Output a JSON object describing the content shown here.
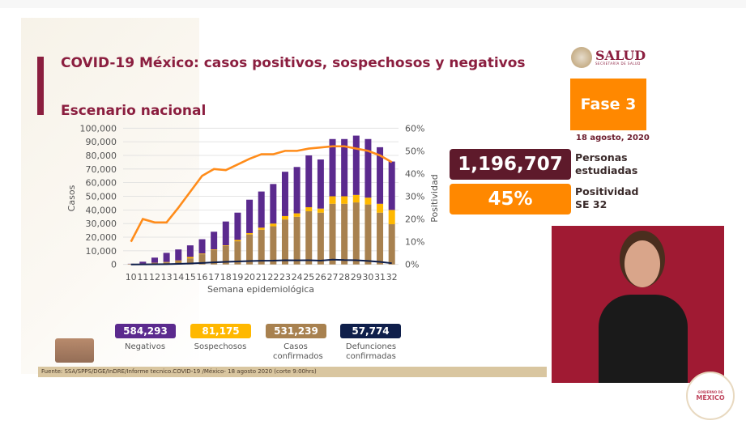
{
  "slide": {
    "title": "COVID-19 México: casos positivos, sospechosos y negativos",
    "subtitle": "Escenario nacional",
    "logo_text": "SALUD",
    "logo_subtext": "SECRETARÍA DE SALUD",
    "phase": "Fase 3",
    "date": "18 agosto, 2020",
    "studied_value": "1,196,707",
    "studied_label_1": "Personas",
    "studied_label_2": "estudiadas",
    "positivity_value": "45%",
    "positivity_label_1": "Positividad",
    "positivity_label_2": "SE 32",
    "source": "Fuente: SSA/SPPS/DGE/InDRE/Informe tecnico.COVID-19 /México- 18 agosto 2020 (corte 9:00hrs)",
    "gob_logo_text": "MÉXICO",
    "gob_logo_subtext": "GOBIERNO DE"
  },
  "totals": [
    {
      "value": "584,293",
      "label": "Negativos",
      "color": "#5b2a8e"
    },
    {
      "value": "81,175",
      "label": "Sospechosos",
      "color": "#ffb800"
    },
    {
      "value": "531,239",
      "label": "Casos confirmados",
      "color": "#a8814f"
    },
    {
      "value": "57,774",
      "label": "Defunciones confirmadas",
      "color": "#0f1f4b"
    }
  ],
  "colors": {
    "brand": "#8b1e3f",
    "orange": "#ff8800",
    "studied_box": "#5e1a2b"
  },
  "chart_data": {
    "type": "bar",
    "stacked": true,
    "xlabel": "Semana epidemiológica",
    "ylabel": "Casos",
    "y2label": "Positividad",
    "ylim": [
      0,
      100000
    ],
    "y2lim": [
      0,
      60
    ],
    "yticks": [
      "0",
      "10,000",
      "20,000",
      "30,000",
      "40,000",
      "50,000",
      "60,000",
      "70,000",
      "80,000",
      "90,000",
      "100,000"
    ],
    "y2ticks": [
      "0%",
      "10%",
      "20%",
      "30%",
      "40%",
      "50%",
      "60%"
    ],
    "grid": true,
    "categories": [
      "10",
      "11",
      "12",
      "13",
      "14",
      "15",
      "16",
      "17",
      "18",
      "19",
      "20",
      "21",
      "22",
      "23",
      "24",
      "25",
      "26",
      "27",
      "28",
      "29",
      "30",
      "31",
      "32"
    ],
    "series": [
      {
        "type": "bar",
        "color": "#a8814f",
        "values": [
          300,
          500,
          1000,
          1500,
          2500,
          4500,
          7500,
          10500,
          13500,
          17000,
          22000,
          25500,
          28000,
          33000,
          35000,
          39000,
          38000,
          44500,
          44500,
          45500,
          44000,
          38000,
          29500
        ]
      },
      {
        "type": "bar",
        "color": "#ffb800",
        "values": [
          50,
          100,
          200,
          300,
          400,
          1000,
          500,
          500,
          500,
          1000,
          1000,
          1500,
          2000,
          2500,
          2500,
          3000,
          3000,
          5500,
          5500,
          5500,
          5000,
          6500,
          10500
        ]
      },
      {
        "type": "bar",
        "color": "#5b2a8e",
        "values": [
          150,
          1400,
          3800,
          6700,
          8100,
          8500,
          10500,
          13000,
          17500,
          20000,
          24500,
          26500,
          29000,
          32500,
          34000,
          38000,
          36000,
          42000,
          42000,
          43500,
          43000,
          41500,
          35500
        ]
      },
      {
        "type": "line",
        "color": "#0f1f4b",
        "values": [
          0,
          50,
          100,
          200,
          400,
          700,
          1100,
          1500,
          1900,
          2200,
          2500,
          2700,
          2800,
          3100,
          3000,
          3100,
          2800,
          3500,
          3200,
          3100,
          2600,
          1900,
          900
        ]
      },
      {
        "type": "line",
        "axis": "right",
        "color": "#ff8c1a",
        "values": [
          10,
          20,
          18.5,
          18.5,
          25,
          32,
          39,
          42,
          41.5,
          44,
          46.5,
          48.5,
          48.5,
          50,
          50,
          51,
          51.5,
          52,
          52,
          51,
          50,
          48,
          45
        ]
      }
    ]
  }
}
